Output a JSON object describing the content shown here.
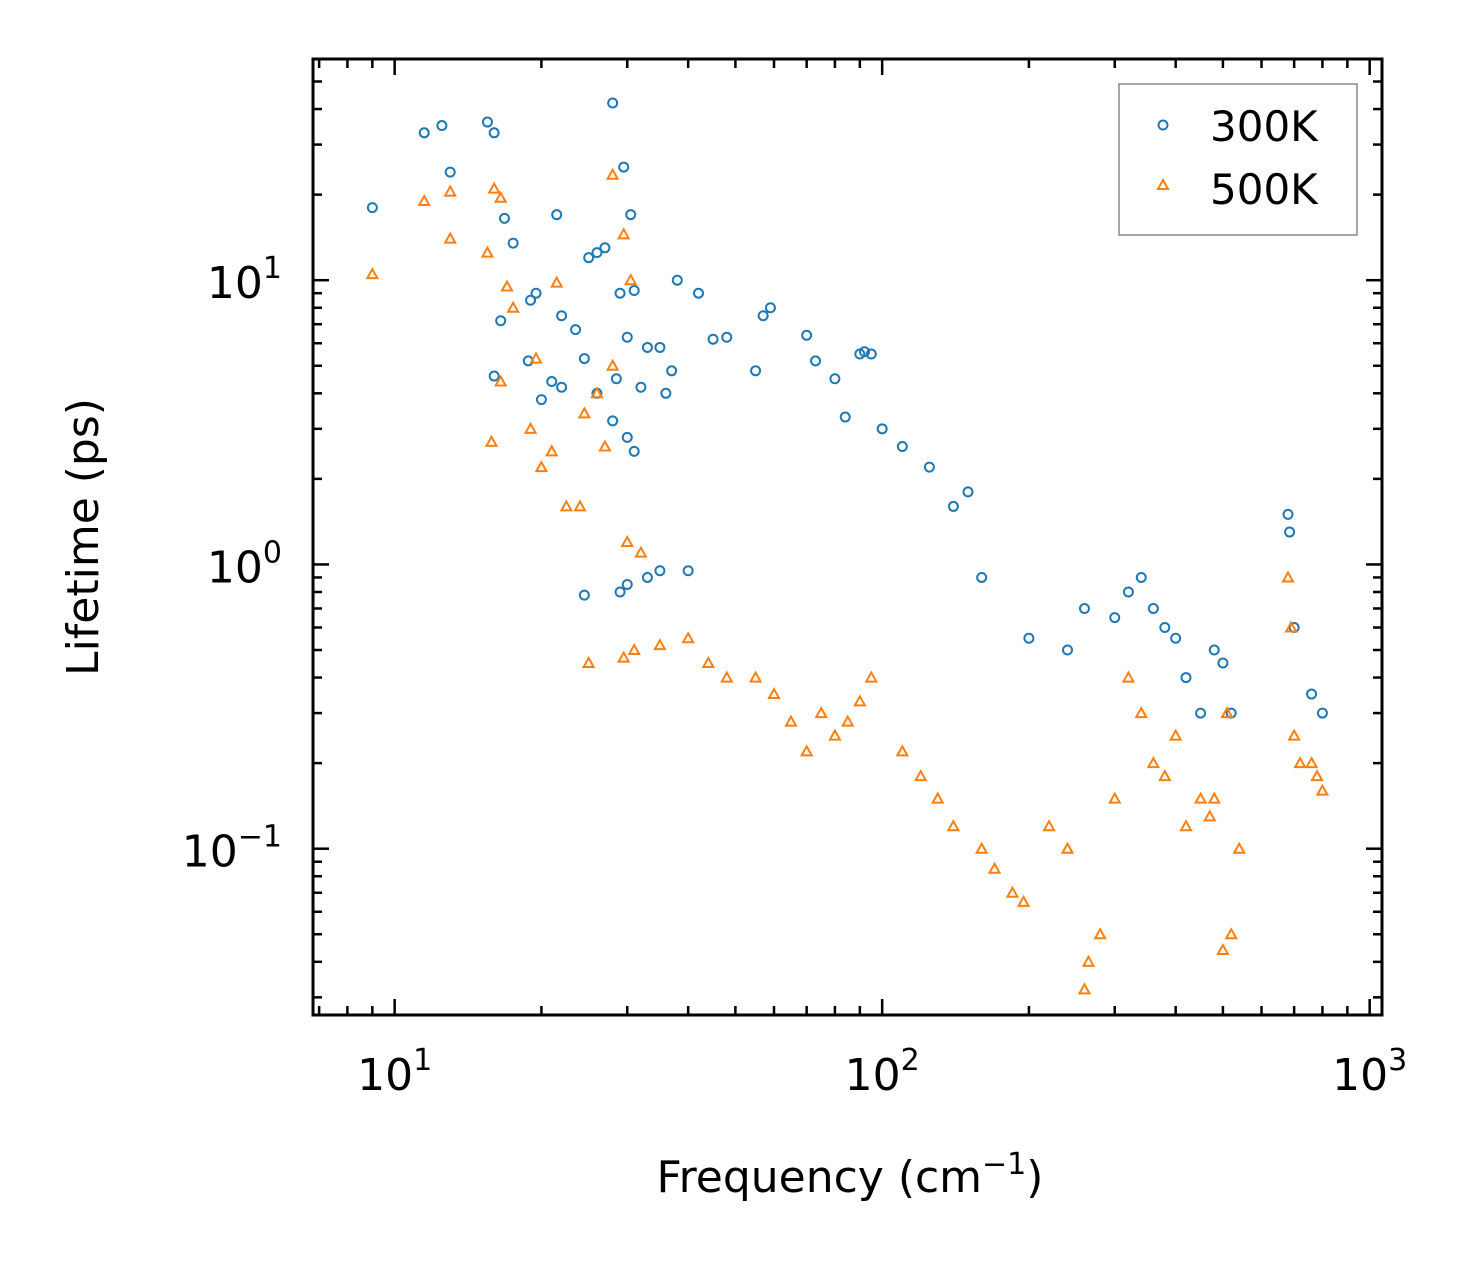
{
  "colors": {
    "series_300K": "#1f77b4",
    "series_500K": "#ff7f0e",
    "axes": "#000000"
  },
  "chart_data": {
    "type": "scatter",
    "title": "",
    "xlabel": "Frequency (cm",
    "xlabel_sup": "−1",
    "xlabel_tail": ")",
    "ylabel": "Lifetime (ps)",
    "xscale": "log",
    "yscale": "log",
    "xlim": [
      6.8,
      1060
    ],
    "ylim": [
      0.026,
      60
    ],
    "x_ticks": [
      {
        "value": 10,
        "base": "10",
        "exp": "1"
      },
      {
        "value": 100,
        "base": "10",
        "exp": "2"
      },
      {
        "value": 1000,
        "base": "10",
        "exp": "3"
      }
    ],
    "y_ticks": [
      {
        "value": 0.1,
        "base": "10",
        "exp": "−1"
      },
      {
        "value": 1,
        "base": "10",
        "exp": "0"
      },
      {
        "value": 10,
        "base": "10",
        "exp": "1"
      }
    ],
    "legend": {
      "position": "top-right",
      "entries": [
        "300K",
        "500K"
      ]
    },
    "series": [
      {
        "name": "300K",
        "marker": "circle",
        "points": [
          [
            9,
            18
          ],
          [
            11.5,
            33
          ],
          [
            12.5,
            35
          ],
          [
            13,
            24
          ],
          [
            15.5,
            36
          ],
          [
            16,
            33
          ],
          [
            28,
            42
          ],
          [
            29.5,
            25
          ],
          [
            30.5,
            17
          ],
          [
            16.8,
            16.5
          ],
          [
            17.5,
            13.5
          ],
          [
            21.5,
            17
          ],
          [
            25,
            12
          ],
          [
            26,
            12.5
          ],
          [
            27,
            13
          ],
          [
            29,
            9
          ],
          [
            31,
            9.2
          ],
          [
            38,
            10
          ],
          [
            42,
            9
          ],
          [
            57,
            7.5
          ],
          [
            59,
            8
          ],
          [
            16.5,
            7.2
          ],
          [
            19,
            8.5
          ],
          [
            19.5,
            9
          ],
          [
            22,
            7.5
          ],
          [
            23.5,
            6.7
          ],
          [
            24.5,
            5.3
          ],
          [
            30,
            6.3
          ],
          [
            33,
            5.8
          ],
          [
            35,
            5.8
          ],
          [
            37,
            4.8
          ],
          [
            18.8,
            5.2
          ],
          [
            16,
            4.6
          ],
          [
            20,
            3.8
          ],
          [
            21,
            4.4
          ],
          [
            22,
            4.2
          ],
          [
            26,
            4
          ],
          [
            28.5,
            4.5
          ],
          [
            32,
            4.2
          ],
          [
            36,
            4
          ],
          [
            28,
            3.2
          ],
          [
            30,
            2.8
          ],
          [
            31,
            2.5
          ],
          [
            24.5,
            0.78
          ],
          [
            29,
            0.8
          ],
          [
            30,
            0.85
          ],
          [
            33,
            0.9
          ],
          [
            35,
            0.95
          ],
          [
            40,
            0.95
          ],
          [
            45,
            6.2
          ],
          [
            48,
            6.3
          ],
          [
            55,
            4.8
          ],
          [
            70,
            6.4
          ],
          [
            73,
            5.2
          ],
          [
            80,
            4.5
          ],
          [
            90,
            5.5
          ],
          [
            92,
            5.6
          ],
          [
            95,
            5.5
          ],
          [
            84,
            3.3
          ],
          [
            100,
            3
          ],
          [
            110,
            2.6
          ],
          [
            125,
            2.2
          ],
          [
            140,
            1.6
          ],
          [
            150,
            1.8
          ],
          [
            160,
            0.9
          ],
          [
            200,
            0.55
          ],
          [
            240,
            0.5
          ],
          [
            260,
            0.7
          ],
          [
            300,
            0.65
          ],
          [
            320,
            0.8
          ],
          [
            340,
            0.9
          ],
          [
            360,
            0.7
          ],
          [
            380,
            0.6
          ],
          [
            400,
            0.55
          ],
          [
            420,
            0.4
          ],
          [
            450,
            0.3
          ],
          [
            480,
            0.5
          ],
          [
            500,
            0.45
          ],
          [
            520,
            0.3
          ],
          [
            680,
            1.5
          ],
          [
            685,
            1.3
          ],
          [
            700,
            0.6
          ],
          [
            760,
            0.35
          ],
          [
            800,
            0.3
          ]
        ]
      },
      {
        "name": "500K",
        "marker": "triangle",
        "points": [
          [
            9,
            10.5
          ],
          [
            11.5,
            19
          ],
          [
            13,
            20.5
          ],
          [
            13,
            14
          ],
          [
            15.5,
            12.5
          ],
          [
            16,
            21
          ],
          [
            16.5,
            19.5
          ],
          [
            28,
            23.5
          ],
          [
            29.5,
            14.5
          ],
          [
            30.5,
            10
          ],
          [
            17,
            9.5
          ],
          [
            17.5,
            8
          ],
          [
            21.5,
            9.8
          ],
          [
            19.5,
            5.3
          ],
          [
            16.5,
            4.4
          ],
          [
            15.8,
            2.7
          ],
          [
            19,
            3
          ],
          [
            20,
            2.2
          ],
          [
            21,
            2.5
          ],
          [
            22.5,
            1.6
          ],
          [
            24,
            1.6
          ],
          [
            24.5,
            3.4
          ],
          [
            26,
            4
          ],
          [
            27,
            2.6
          ],
          [
            28,
            5
          ],
          [
            30,
            1.2
          ],
          [
            32,
            1.1
          ],
          [
            25,
            0.45
          ],
          [
            29.5,
            0.47
          ],
          [
            31,
            0.5
          ],
          [
            35,
            0.52
          ],
          [
            40,
            0.55
          ],
          [
            44,
            0.45
          ],
          [
            48,
            0.4
          ],
          [
            55,
            0.4
          ],
          [
            60,
            0.35
          ],
          [
            65,
            0.28
          ],
          [
            70,
            0.22
          ],
          [
            75,
            0.3
          ],
          [
            80,
            0.25
          ],
          [
            85,
            0.28
          ],
          [
            90,
            0.33
          ],
          [
            95,
            0.4
          ],
          [
            110,
            0.22
          ],
          [
            120,
            0.18
          ],
          [
            130,
            0.15
          ],
          [
            140,
            0.12
          ],
          [
            160,
            0.1
          ],
          [
            170,
            0.085
          ],
          [
            185,
            0.07
          ],
          [
            195,
            0.065
          ],
          [
            220,
            0.12
          ],
          [
            240,
            0.1
          ],
          [
            260,
            0.032
          ],
          [
            265,
            0.04
          ],
          [
            280,
            0.05
          ],
          [
            300,
            0.15
          ],
          [
            320,
            0.4
          ],
          [
            340,
            0.3
          ],
          [
            360,
            0.2
          ],
          [
            380,
            0.18
          ],
          [
            400,
            0.25
          ],
          [
            420,
            0.12
          ],
          [
            450,
            0.15
          ],
          [
            470,
            0.13
          ],
          [
            480,
            0.15
          ],
          [
            500,
            0.044
          ],
          [
            510,
            0.3
          ],
          [
            520,
            0.05
          ],
          [
            540,
            0.1
          ],
          [
            680,
            0.9
          ],
          [
            690,
            0.6
          ],
          [
            700,
            0.25
          ],
          [
            720,
            0.2
          ],
          [
            760,
            0.2
          ],
          [
            780,
            0.18
          ],
          [
            800,
            0.16
          ]
        ]
      }
    ]
  }
}
